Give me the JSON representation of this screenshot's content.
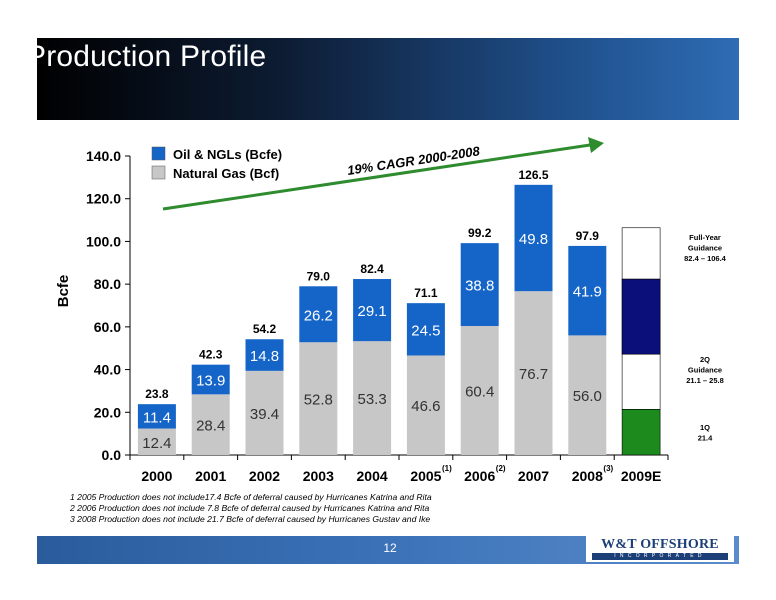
{
  "slide": {
    "title": "Production Profile",
    "page_number": "12",
    "logo_text": "W&T OFFSHORE",
    "logo_subtext": "INCORPORATED"
  },
  "footnotes": [
    "1  2005 Production does not include17.4 Bcfe of deferral caused by Hurricanes Katrina and Rita",
    "2  2006 Production does not include 7.8 Bcfe of deferral caused by Hurricanes Katrina and Rita",
    "3  2008 Production does not include 21.7 Bcfe of deferral caused by Hurricanes Gustav and Ike"
  ],
  "colors": {
    "oil": "#1565c8",
    "gas": "#c7c7c7",
    "guidance_q2": "#0b0f7a",
    "guidance_q1": "#1d8a1d",
    "arrow": "#2e8b2e"
  },
  "chart_data": {
    "type": "bar",
    "stacked": true,
    "ylabel": "Bcfe",
    "ylim": [
      0,
      140
    ],
    "yticks": [
      "0.0",
      "20.0",
      "40.0",
      "60.0",
      "80.0",
      "100.0",
      "120.0",
      "140.0"
    ],
    "categories": [
      "2000",
      "2001",
      "2002",
      "2003",
      "2004",
      "2005",
      "2006",
      "2007",
      "2008",
      "2009E"
    ],
    "category_notes": [
      "",
      "",
      "",
      "",
      "",
      "(1)",
      "(2)",
      "",
      "(3)",
      ""
    ],
    "series": [
      {
        "name": "Natural Gas (Bcf)",
        "values": [
          12.4,
          28.4,
          39.4,
          52.8,
          53.3,
          46.6,
          60.4,
          76.7,
          56.0,
          null
        ]
      },
      {
        "name": "Oil & NGLs (Bcfe)",
        "values": [
          11.4,
          13.9,
          14.8,
          26.2,
          29.1,
          24.5,
          38.8,
          49.8,
          41.9,
          null
        ]
      }
    ],
    "totals": [
      "23.8",
      "42.3",
      "54.2",
      "79.0",
      "82.4",
      "71.1",
      "99.2",
      "126.5",
      "97.9",
      ""
    ],
    "gas_labels": [
      "12.4",
      "28.4",
      "39.4",
      "52.8",
      "53.3",
      "46.6",
      "60.4",
      "76.7",
      "56.0",
      ""
    ],
    "oil_labels": [
      "11.4",
      "13.9",
      "14.8",
      "26.2",
      "29.1",
      "24.5",
      "38.8",
      "49.8",
      "41.9",
      ""
    ],
    "trend_annotation": "19% CAGR 2000-2008",
    "legend_position": "top-left",
    "guidance_2009E": {
      "segments": [
        {
          "label": "1Q",
          "value": 21.4
        },
        {
          "label": "2Q",
          "range": [
            21.1,
            25.8
          ]
        },
        {
          "label": "Full-Year",
          "range": [
            82.4,
            106.4
          ]
        }
      ],
      "q1_text": [
        "1Q",
        "21.4"
      ],
      "q2_text": [
        "2Q",
        "Guidance",
        "21.1 – 25.8"
      ],
      "full_year_text": [
        "Full-Year",
        "Guidance",
        "82.4 – 106.4"
      ]
    }
  }
}
